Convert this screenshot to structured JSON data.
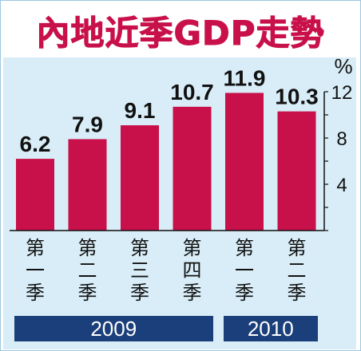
{
  "title": "內地近季GDP走勢",
  "unit": "%",
  "colors": {
    "bar": "#c8104a",
    "panel": "#d8edf7",
    "year_band": "#1b3f7a",
    "title": "#c8104a"
  },
  "year_groups": [
    {
      "label": "2009",
      "span": 4
    },
    {
      "label": "2010",
      "span": 2
    }
  ],
  "chart_data": {
    "type": "bar",
    "categories": [
      "第\n一\n季",
      "第\n二\n季",
      "第\n三\n季",
      "第\n四\n季",
      "第\n一\n季",
      "第\n二\n季"
    ],
    "values": [
      6.2,
      7.9,
      9.1,
      10.7,
      11.9,
      10.3
    ],
    "value_labels": [
      "6.2",
      "7.9",
      "9.1",
      "10.7",
      "11.9",
      "10.3"
    ],
    "ylim": [
      0,
      12
    ],
    "yticks": [
      4,
      8,
      12
    ],
    "ytick_labels": [
      "4",
      "8",
      "12"
    ],
    "y_axis_position": "right",
    "title": "內地近季GDP走勢",
    "xlabel": "",
    "ylabel": "%",
    "grid": false
  }
}
